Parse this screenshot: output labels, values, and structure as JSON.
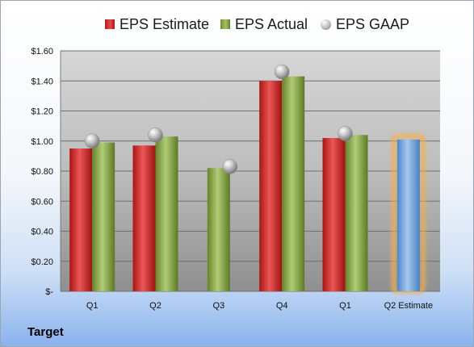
{
  "company_label": "Target",
  "chart_data": {
    "type": "bar",
    "categories": [
      "Q1",
      "Q2",
      "Q3",
      "Q4",
      "Q1",
      "Q2 Estimate"
    ],
    "series": [
      {
        "name": "EPS Estimate",
        "kind": "bar",
        "color": "#c62828",
        "values": [
          0.95,
          0.97,
          null,
          1.4,
          1.02,
          null
        ]
      },
      {
        "name": "EPS Actual",
        "kind": "bar",
        "color": "#8aac4a",
        "values": [
          0.99,
          1.03,
          0.82,
          1.43,
          1.04,
          null
        ]
      },
      {
        "name": "EPS GAAP",
        "kind": "marker",
        "color": "#a8a8a8",
        "values": [
          1.0,
          1.04,
          0.83,
          1.46,
          1.05,
          null
        ]
      },
      {
        "name": "",
        "kind": "bar",
        "color": "#6fa3dc",
        "highlight": "#f5b04a",
        "values": [
          null,
          null,
          null,
          null,
          null,
          1.01
        ]
      }
    ],
    "yticks": [
      "$-",
      "$0.20",
      "$0.40",
      "$0.60",
      "$0.80",
      "$1.00",
      "$1.20",
      "$1.40",
      "$1.60"
    ],
    "ylim": [
      0,
      1.6
    ],
    "grid": true,
    "legend_position": "top"
  }
}
